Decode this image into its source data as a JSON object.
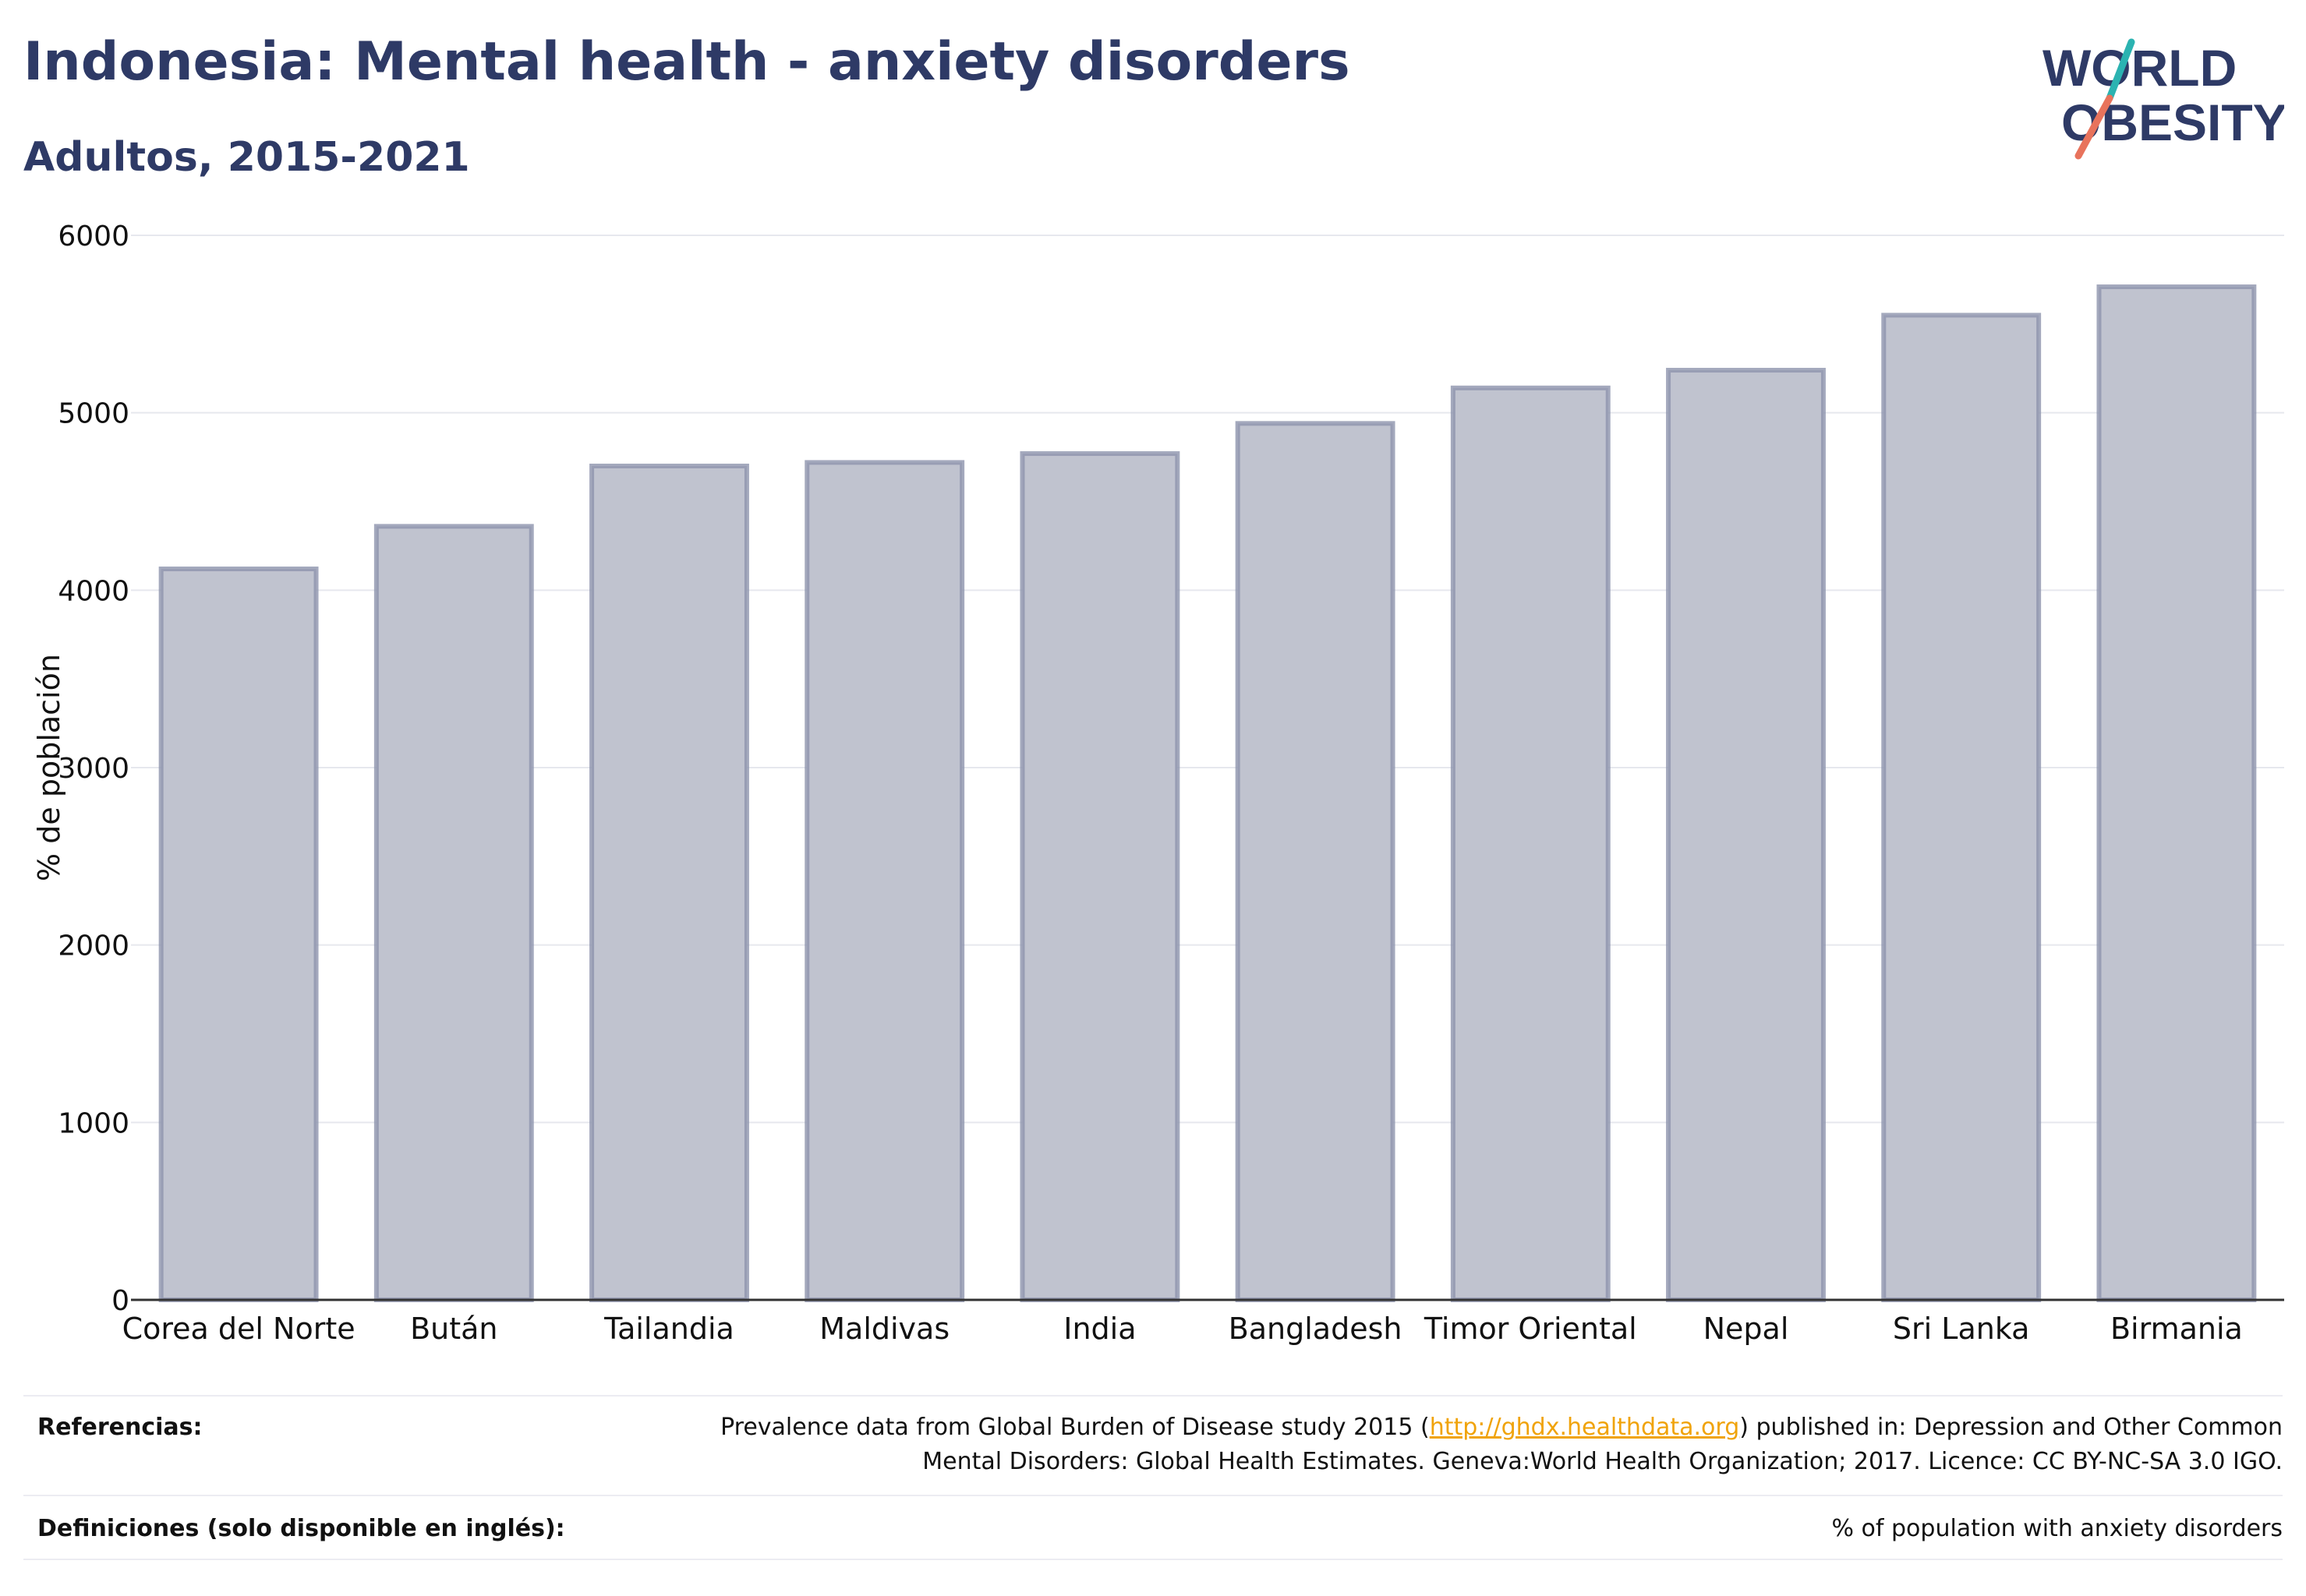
{
  "header": {
    "title": "Indonesia: Mental health - anxiety disorders",
    "subtitle": "Adultos, 2015-2021"
  },
  "logo": {
    "line1": "WORLD",
    "line2": "OBESITY"
  },
  "chart_data": {
    "type": "bar",
    "categories": [
      "Corea del Norte",
      "Bután",
      "Tailandia",
      "Maldivas",
      "India",
      "Bangladesh",
      "Timor Oriental",
      "Nepal",
      "Sri Lanka",
      "Birmania"
    ],
    "values": [
      4120,
      4360,
      4700,
      4720,
      4770,
      4940,
      5140,
      5240,
      5550,
      5710
    ],
    "ylabel": "% de población",
    "ylim": [
      0,
      6000
    ],
    "yticks": [
      "0",
      "1000",
      "2000",
      "3000",
      "4000",
      "5000",
      "6000"
    ],
    "grid": true,
    "colors": {
      "bar_fill": "#c0c3cf",
      "bar_stroke": "#8d93ad",
      "grid": "#e6e8ee",
      "axis": "#333333"
    }
  },
  "footer": {
    "references_label": "Referencias:",
    "references_pre": "Prevalence data from Global Burden of Disease study 2015 (",
    "references_link": "http://ghdx.healthdata.org",
    "references_post": ") published in: Depression and Other Common",
    "references_line2": "Mental Disorders: Global Health Estimates. Geneva:World Health Organization; 2017. Licence: CC BY-NC-SA 3.0 IGO.",
    "definitions_label": "Definiciones (solo disponible en inglés):",
    "definitions_text": "% of population with anxiety disorders"
  }
}
